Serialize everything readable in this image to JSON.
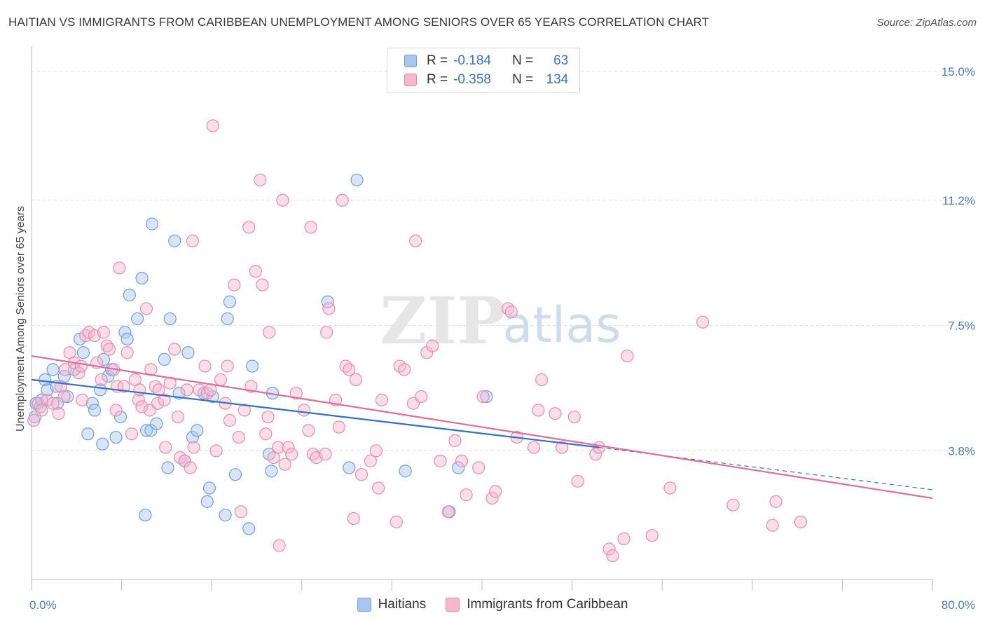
{
  "header": {
    "title": "HAITIAN VS IMMIGRANTS FROM CARIBBEAN UNEMPLOYMENT AMONG SENIORS OVER 65 YEARS CORRELATION CHART",
    "source": "Source: ZipAtlas.com"
  },
  "watermark": {
    "zip": "ZIP",
    "atlas": "atlas"
  },
  "legend_top": {
    "rows": [
      {
        "r_label": "R =",
        "r_value": "-0.184",
        "n_label": "N =",
        "n_value": "63"
      },
      {
        "r_label": "R =",
        "r_value": "-0.358",
        "n_label": "N =",
        "n_value": "134"
      }
    ]
  },
  "legend_bottom": {
    "items": [
      "Haitians",
      "Immigrants from Caribbean"
    ]
  },
  "colors": {
    "blue_fill": "#a9c6ee",
    "blue_stroke": "#6f9fe0",
    "blue_line": "#2f6fd0",
    "pink_fill": "#f6b6cb",
    "pink_stroke": "#ec8aac",
    "pink_line": "#e26b97",
    "tick_text": "#4a7cc7",
    "grid": "#dddddd"
  },
  "chart_data": {
    "type": "scatter",
    "title": "HAITIAN VS IMMIGRANTS FROM CARIBBEAN UNEMPLOYMENT AMONG SENIORS OVER 65 YEARS CORRELATION CHART",
    "xlabel": "",
    "ylabel": "Unemployment Among Seniors over 65 years",
    "xlim": [
      0,
      80
    ],
    "ylim": [
      0,
      15.5
    ],
    "x_tick_labels": [
      "0.0%",
      "80.0%"
    ],
    "y_ticks": [
      3.8,
      7.5,
      11.2,
      15.0
    ],
    "y_tick_labels": [
      "3.8%",
      "7.5%",
      "11.2%",
      "15.0%"
    ],
    "grid": true,
    "legend_position": "bottom",
    "series": [
      {
        "name": "Haitians",
        "r": -0.184,
        "n": 63,
        "trend": {
          "x0": 0,
          "y0": 5.9,
          "x1": 50.4,
          "y1": 3.9,
          "dashed_to_x": 80,
          "dashed_to_y": 2.65
        },
        "points": [
          [
            0.3,
            4.8
          ],
          [
            0.4,
            5.2
          ],
          [
            0.8,
            5.1
          ],
          [
            0.9,
            5.3
          ],
          [
            1.2,
            5.9
          ],
          [
            1.4,
            5.6
          ],
          [
            1.9,
            6.2
          ],
          [
            2.2,
            5.7
          ],
          [
            2.3,
            5.2
          ],
          [
            3.2,
            5.4
          ],
          [
            2.9,
            6.0
          ],
          [
            3.8,
            6.2
          ],
          [
            4.3,
            7.1
          ],
          [
            4.6,
            6.7
          ],
          [
            5.0,
            4.3
          ],
          [
            5.4,
            5.2
          ],
          [
            5.6,
            5.0
          ],
          [
            6.1,
            5.6
          ],
          [
            6.3,
            4.0
          ],
          [
            6.4,
            6.5
          ],
          [
            6.8,
            6.0
          ],
          [
            7.1,
            6.2
          ],
          [
            7.5,
            4.2
          ],
          [
            7.9,
            4.8
          ],
          [
            8.3,
            7.3
          ],
          [
            8.5,
            7.1
          ],
          [
            8.7,
            8.4
          ],
          [
            9.4,
            7.7
          ],
          [
            9.8,
            8.9
          ],
          [
            10.1,
            1.9
          ],
          [
            10.2,
            4.4
          ],
          [
            10.6,
            4.4
          ],
          [
            10.7,
            10.5
          ],
          [
            11.1,
            4.6
          ],
          [
            11.8,
            6.5
          ],
          [
            12.1,
            3.3
          ],
          [
            12.3,
            7.7
          ],
          [
            12.7,
            10.0
          ],
          [
            13.1,
            5.5
          ],
          [
            13.6,
            3.5
          ],
          [
            13.9,
            6.7
          ],
          [
            14.3,
            4.2
          ],
          [
            14.7,
            4.4
          ],
          [
            15.3,
            5.5
          ],
          [
            15.6,
            2.3
          ],
          [
            15.8,
            2.7
          ],
          [
            16.1,
            5.4
          ],
          [
            17.2,
            1.9
          ],
          [
            17.4,
            7.7
          ],
          [
            17.6,
            8.2
          ],
          [
            18.1,
            3.1
          ],
          [
            19.3,
            1.5
          ],
          [
            19.6,
            6.3
          ],
          [
            21.1,
            3.7
          ],
          [
            21.3,
            3.2
          ],
          [
            21.4,
            5.5
          ],
          [
            26.3,
            8.2
          ],
          [
            28.2,
            3.3
          ],
          [
            28.9,
            11.8
          ],
          [
            33.2,
            3.2
          ],
          [
            37.1,
            2.0
          ],
          [
            37.9,
            3.3
          ],
          [
            40.4,
            5.4
          ]
        ]
      },
      {
        "name": "Immigrants from Caribbean",
        "r": -0.358,
        "n": 134,
        "trend": {
          "x0": 0,
          "y0": 6.6,
          "x1": 80,
          "y1": 2.4
        },
        "points": [
          [
            0.2,
            4.7
          ],
          [
            0.6,
            5.2
          ],
          [
            0.9,
            5.0
          ],
          [
            1.4,
            5.3
          ],
          [
            1.9,
            5.2
          ],
          [
            2.4,
            4.9
          ],
          [
            2.6,
            5.7
          ],
          [
            2.9,
            5.4
          ],
          [
            3.0,
            6.2
          ],
          [
            3.4,
            6.7
          ],
          [
            3.8,
            6.4
          ],
          [
            4.2,
            6.1
          ],
          [
            4.4,
            6.3
          ],
          [
            4.5,
            5.3
          ],
          [
            4.8,
            7.2
          ],
          [
            5.1,
            7.3
          ],
          [
            5.6,
            7.2
          ],
          [
            5.8,
            6.4
          ],
          [
            6.2,
            5.9
          ],
          [
            6.4,
            7.3
          ],
          [
            6.7,
            6.9
          ],
          [
            6.9,
            6.8
          ],
          [
            7.3,
            6.2
          ],
          [
            7.5,
            5.0
          ],
          [
            7.6,
            5.7
          ],
          [
            7.8,
            9.2
          ],
          [
            8.2,
            5.7
          ],
          [
            8.5,
            6.7
          ],
          [
            8.9,
            4.3
          ],
          [
            9.2,
            5.9
          ],
          [
            9.5,
            5.3
          ],
          [
            9.6,
            5.6
          ],
          [
            9.8,
            5.1
          ],
          [
            10.2,
            8.0
          ],
          [
            10.5,
            5.0
          ],
          [
            10.6,
            6.2
          ],
          [
            11.0,
            5.7
          ],
          [
            11.2,
            5.2
          ],
          [
            11.3,
            5.6
          ],
          [
            11.8,
            5.3
          ],
          [
            11.9,
            3.9
          ],
          [
            12.3,
            5.8
          ],
          [
            12.7,
            6.8
          ],
          [
            13.0,
            4.8
          ],
          [
            13.2,
            3.6
          ],
          [
            13.6,
            3.5
          ],
          [
            13.8,
            5.6
          ],
          [
            14.1,
            3.3
          ],
          [
            14.3,
            10.0
          ],
          [
            14.4,
            3.9
          ],
          [
            14.9,
            5.6
          ],
          [
            15.4,
            6.3
          ],
          [
            15.6,
            5.5
          ],
          [
            15.9,
            5.6
          ],
          [
            16.1,
            13.4
          ],
          [
            16.4,
            3.8
          ],
          [
            16.8,
            5.9
          ],
          [
            17.2,
            5.2
          ],
          [
            17.4,
            6.3
          ],
          [
            17.6,
            4.7
          ],
          [
            18.0,
            8.7
          ],
          [
            18.4,
            4.2
          ],
          [
            18.6,
            2.0
          ],
          [
            18.9,
            5.0
          ],
          [
            19.3,
            10.4
          ],
          [
            19.5,
            5.7
          ],
          [
            19.9,
            9.1
          ],
          [
            20.3,
            11.8
          ],
          [
            20.5,
            8.7
          ],
          [
            20.8,
            4.3
          ],
          [
            21.0,
            4.8
          ],
          [
            21.1,
            7.3
          ],
          [
            21.5,
            3.6
          ],
          [
            21.9,
            3.9
          ],
          [
            22.0,
            1.0
          ],
          [
            22.3,
            11.2
          ],
          [
            22.5,
            3.4
          ],
          [
            22.8,
            3.9
          ],
          [
            23.1,
            3.7
          ],
          [
            23.5,
            5.5
          ],
          [
            24.2,
            5.0
          ],
          [
            24.6,
            4.4
          ],
          [
            24.8,
            10.4
          ],
          [
            25.0,
            3.7
          ],
          [
            25.3,
            3.6
          ],
          [
            26.1,
            3.7
          ],
          [
            26.2,
            7.3
          ],
          [
            26.4,
            8.0
          ],
          [
            27.0,
            5.3
          ],
          [
            27.3,
            4.5
          ],
          [
            27.6,
            11.2
          ],
          [
            27.9,
            6.3
          ],
          [
            28.2,
            6.2
          ],
          [
            28.6,
            1.8
          ],
          [
            28.8,
            5.9
          ],
          [
            29.3,
            3.1
          ],
          [
            30.1,
            3.5
          ],
          [
            30.6,
            3.8
          ],
          [
            30.8,
            2.7
          ],
          [
            31.1,
            5.3
          ],
          [
            32.4,
            1.7
          ],
          [
            32.7,
            6.3
          ],
          [
            33.1,
            6.2
          ],
          [
            33.9,
            5.2
          ],
          [
            34.1,
            10.0
          ],
          [
            34.6,
            5.4
          ],
          [
            35.1,
            6.7
          ],
          [
            35.6,
            6.9
          ],
          [
            36.3,
            3.5
          ],
          [
            37.0,
            2.0
          ],
          [
            37.6,
            4.1
          ],
          [
            38.2,
            3.5
          ],
          [
            38.6,
            2.5
          ],
          [
            39.7,
            3.3
          ],
          [
            40.1,
            5.4
          ],
          [
            40.9,
            2.4
          ],
          [
            41.2,
            2.6
          ],
          [
            42.3,
            8.0
          ],
          [
            42.6,
            7.9
          ],
          [
            43.1,
            4.2
          ],
          [
            44.6,
            3.9
          ],
          [
            45.0,
            5.0
          ],
          [
            45.3,
            5.9
          ],
          [
            46.5,
            4.9
          ],
          [
            47.1,
            3.9
          ],
          [
            48.2,
            4.8
          ],
          [
            48.5,
            2.9
          ],
          [
            50.1,
            3.7
          ],
          [
            50.4,
            3.9
          ],
          [
            51.3,
            0.9
          ],
          [
            51.6,
            0.7
          ],
          [
            52.6,
            1.2
          ],
          [
            52.9,
            6.6
          ],
          [
            55.1,
            1.3
          ],
          [
            56.7,
            2.7
          ],
          [
            59.6,
            7.6
          ],
          [
            62.3,
            2.2
          ],
          [
            65.8,
            1.6
          ],
          [
            66.1,
            2.3
          ],
          [
            68.3,
            1.7
          ]
        ]
      }
    ]
  }
}
